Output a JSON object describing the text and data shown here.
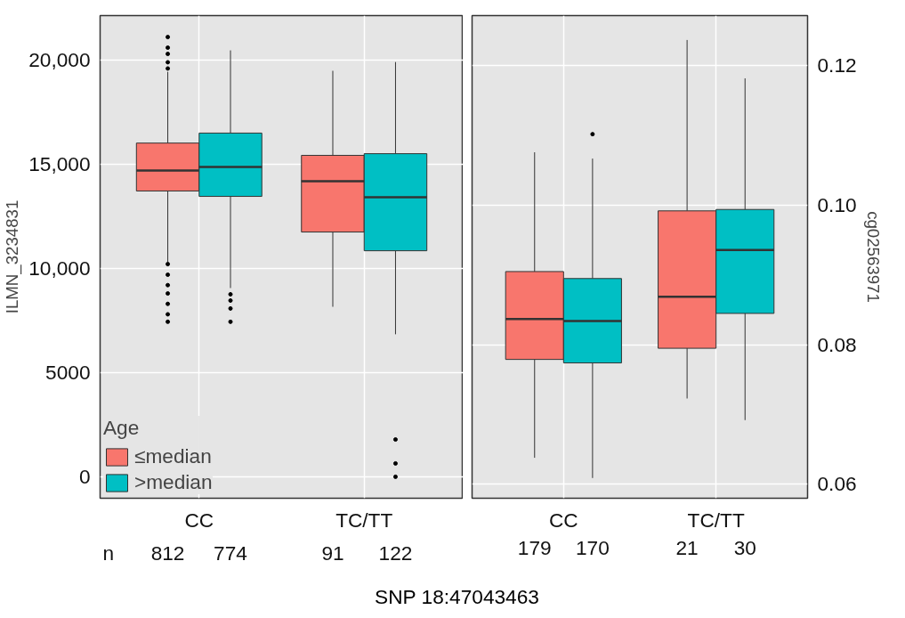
{
  "chart_data": [
    {
      "type": "box",
      "ylabel": "ILMN_3234831",
      "xlabel": "SNP 18:47043463",
      "legend_title": "Age",
      "legend": "bottom left",
      "grid": true,
      "categories": [
        "CC",
        "TC/TT"
      ],
      "ylim": [
        -1030,
        22140
      ],
      "yticks": [
        {
          "value": 0,
          "label": "0"
        },
        {
          "value": 5000,
          "label": "5000"
        },
        {
          "value": 10000,
          "label": "10,000"
        },
        {
          "value": 15000,
          "label": "15,000"
        },
        {
          "value": 20000,
          "label": "20,000"
        }
      ],
      "annotations": [
        "n"
      ],
      "series": [
        {
          "name": "≤median",
          "color": "#f8766d",
          "value_labels": [
            "812",
            "91"
          ],
          "boxes": [
            {
              "low": 10300,
              "q1": 13720,
              "median": 14700,
              "q3": 16020,
              "high": 19440,
              "outliers": [
                21110,
                20600,
                20300,
                19900,
                19600,
                10210,
                9700,
                9200,
                8800,
                8300,
                7800,
                7440
              ]
            },
            {
              "low": 8160,
              "q1": 11750,
              "median": 14190,
              "q3": 15430,
              "high": 19490
            }
          ]
        },
        {
          "name": ">median",
          "color": "#00bfc4",
          "value_labels": [
            "774",
            "122"
          ],
          "boxes": [
            {
              "low": 9060,
              "q1": 13460,
              "median": 14870,
              "q3": 16500,
              "high": 20470,
              "outliers": [
                8760,
                8460,
                8080,
                7440
              ]
            },
            {
              "low": 6840,
              "q1": 10850,
              "median": 13420,
              "q3": 15510,
              "high": 19910,
              "outliers": [
                1790,
                640,
                0
              ]
            }
          ]
        }
      ]
    },
    {
      "type": "box",
      "y2label": "cg02563971",
      "grid": true,
      "categories": [
        "CC",
        "TC/TT"
      ],
      "y2lim": [
        0.058,
        0.1272
      ],
      "y2ticks": [
        0.06,
        0.08,
        {
          "value": 0.1,
          "label": "0.10"
        },
        0.12
      ],
      "series": [
        {
          "axis": "y2",
          "color": "#f8766d",
          "value_labels": [
            "179",
            "21"
          ],
          "boxes": [
            {
              "low": 0.0638,
              "q1": 0.0779,
              "median": 0.0837,
              "q3": 0.0905,
              "high": 0.1076
            },
            {
              "low": 0.0723,
              "q1": 0.0795,
              "median": 0.0869,
              "q3": 0.0992,
              "high": 0.1237
            }
          ]
        },
        {
          "axis": "y2",
          "color": "#00bfc4",
          "value_labels": [
            "170",
            "30"
          ],
          "boxes": [
            {
              "low": 0.0609,
              "q1": 0.0774,
              "median": 0.0834,
              "q3": 0.0895,
              "high": 0.1067,
              "outliers": [
                0.1102
              ]
            },
            {
              "low": 0.0692,
              "q1": 0.0845,
              "median": 0.0936,
              "q3": 0.0994,
              "high": 0.1182
            }
          ]
        }
      ]
    }
  ]
}
